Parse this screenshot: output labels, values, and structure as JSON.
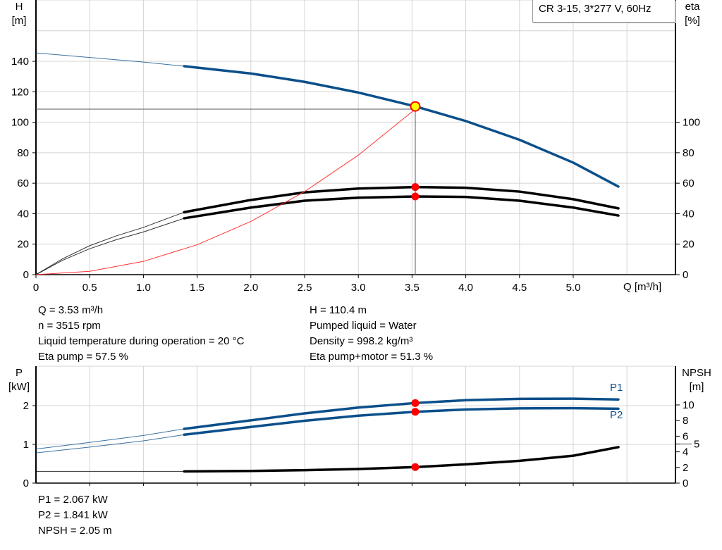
{
  "chart_data": [
    {
      "type": "line",
      "title": "CR 3-15, 3*277 V, 60Hz",
      "xlabel": "Q [m³/h]",
      "ylabel": "H\n[m]",
      "ylabel_parts": [
        "H",
        "[m]"
      ],
      "y2label_parts": [
        "eta",
        "[%]"
      ],
      "xlim": [
        0,
        5.9
      ],
      "ylim": [
        0,
        180
      ],
      "y2lim": [
        0,
        180
      ],
      "xticks": [
        "0",
        "0.5",
        "1.0",
        "1.5",
        "2.0",
        "2.5",
        "3.0",
        "3.5",
        "4.0",
        "4.5",
        "5.0"
      ],
      "xtick_values": [
        0,
        0.5,
        1,
        1.5,
        2,
        2.5,
        3,
        3.5,
        4,
        4.5,
        5
      ],
      "yticks": [
        0,
        20,
        40,
        60,
        80,
        100,
        120,
        140
      ],
      "y2ticks": [
        0,
        20,
        40,
        60,
        80,
        100
      ],
      "grid": true,
      "series": [
        {
          "key": "H",
          "color": "#0b4f8a",
          "x": [
            0,
            0.5,
            1.0,
            1.38,
            2.0,
            2.5,
            3.0,
            3.53,
            4.0,
            4.5,
            5.0,
            5.42
          ],
          "y": [
            145.5,
            142.5,
            139.5,
            136.8,
            132,
            126.5,
            119.5,
            110.4,
            100.8,
            88.5,
            73.5,
            57.8
          ],
          "thick_from": 1.38
        },
        {
          "key": "eta_pump",
          "color": "#000000",
          "x": [
            0,
            0.25,
            0.5,
            0.75,
            1.0,
            1.38,
            2.0,
            2.5,
            3.0,
            3.53,
            4.0,
            4.5,
            5.0,
            5.42
          ],
          "y": [
            0,
            10.5,
            19,
            25.5,
            31,
            41,
            49,
            54,
            56.5,
            57.5,
            57,
            54.5,
            49.5,
            43.5
          ],
          "thick_from": 1.38
        },
        {
          "key": "eta_pump_motor",
          "color": "#000000",
          "x": [
            0,
            0.25,
            0.5,
            0.75,
            1.0,
            1.38,
            2.0,
            2.5,
            3.0,
            3.53,
            4.0,
            4.5,
            5.0,
            5.42
          ],
          "y": [
            0,
            9.5,
            17,
            23,
            28,
            37,
            44,
            48.5,
            50.5,
            51.3,
            51,
            48.5,
            44,
            38.8
          ],
          "thick_from": 1.38
        },
        {
          "key": "system_curve",
          "color": "#ff3333",
          "x": [
            0,
            0.5,
            1.0,
            1.5,
            2.0,
            2.5,
            3.0,
            3.53
          ],
          "y": [
            0,
            2.2,
            8.7,
            19.6,
            34.9,
            54.5,
            78.4,
            108.6
          ]
        }
      ],
      "duty_point": {
        "x": 3.53,
        "y": 110.4,
        "ref_line_y": 108.6,
        "fill": "#ffff00",
        "stroke": "#ff0000"
      },
      "eta_points": [
        57.5,
        51.3
      ]
    },
    {
      "type": "line",
      "xlim": [
        0,
        5.9
      ],
      "ylim": [
        0,
        3.05
      ],
      "y2lim": [
        0,
        13.7
      ],
      "ylabel_parts": [
        "P",
        "[kW]"
      ],
      "y2label_parts": [
        "NPSH",
        "[m]"
      ],
      "yticks": [
        0,
        1,
        2
      ],
      "y2ticks": [
        0,
        2,
        4,
        5,
        6,
        8,
        10
      ],
      "grid": true,
      "series": [
        {
          "name": "P1",
          "color": "#0b4f8a",
          "x": [
            0,
            0.5,
            1.0,
            1.38,
            2.0,
            2.5,
            3.0,
            3.53,
            4.0,
            4.5,
            5.0,
            5.42
          ],
          "y": [
            0.88,
            1.05,
            1.23,
            1.4,
            1.62,
            1.8,
            1.95,
            2.067,
            2.14,
            2.175,
            2.18,
            2.16
          ],
          "thick_from": 1.38
        },
        {
          "name": "P2",
          "color": "#0b4f8a",
          "x": [
            0,
            0.5,
            1.0,
            1.38,
            2.0,
            2.5,
            3.0,
            3.53,
            4.0,
            4.5,
            5.0,
            5.42
          ],
          "y": [
            0.78,
            0.93,
            1.09,
            1.25,
            1.45,
            1.61,
            1.74,
            1.841,
            1.9,
            1.93,
            1.935,
            1.92
          ],
          "thick_from": 1.38
        },
        {
          "key": "NPSH",
          "axis": "right",
          "color": "#000000",
          "x": [
            0,
            1.0,
            1.38,
            2.0,
            2.5,
            3.0,
            3.53,
            4.0,
            4.5,
            5.0,
            5.42
          ],
          "y": [
            1.5,
            1.5,
            1.5,
            1.55,
            1.65,
            1.8,
            2.05,
            2.4,
            2.85,
            3.5,
            4.6
          ],
          "thick_from": 1.38
        }
      ],
      "duty_x": 3.53
    }
  ],
  "info_top_left": [
    "Q = 3.53 m³/h",
    "n = 3515 rpm",
    "Liquid temperature during operation = 20 °C",
    "Eta pump = 57.5 %"
  ],
  "info_top_right": [
    "H = 110.4 m",
    "Pumped liquid = Water",
    "Density = 998.2 kg/m³",
    "Eta pump+motor = 51.3 %"
  ],
  "info_bottom": [
    "P1 = 2.067 kW",
    "P2 = 1.841 kW",
    "NPSH = 2.05 m"
  ]
}
